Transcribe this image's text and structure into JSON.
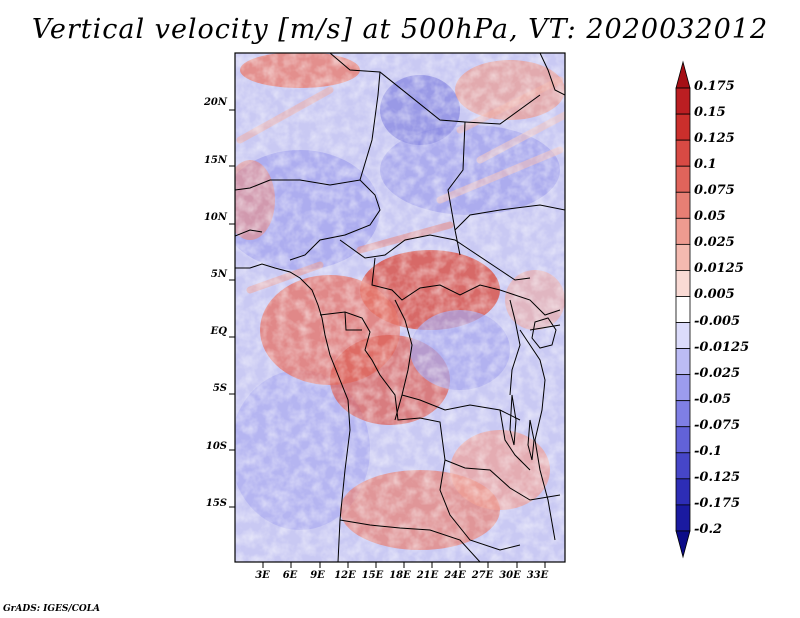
{
  "title": "Vertical velocity [m/s] at 500hPa, VT: 2020032012",
  "footer": "GrADS: IGES/COLA",
  "map": {
    "field": "vertical velocity",
    "units": "m/s",
    "level": "500hPa",
    "valid_time": "2020032012",
    "lon_range": [
      0,
      36
    ],
    "lat_range": [
      -20,
      24.5
    ],
    "lat_labels": [
      {
        "lat": 20,
        "text": "20N"
      },
      {
        "lat": 15,
        "text": "15N"
      },
      {
        "lat": 10,
        "text": "10N"
      },
      {
        "lat": 5,
        "text": "5N"
      },
      {
        "lat": 0,
        "text": "EQ"
      },
      {
        "lat": -5,
        "text": "5S"
      },
      {
        "lat": -10,
        "text": "10S"
      },
      {
        "lat": -15,
        "text": "15S"
      }
    ],
    "lon_labels": [
      {
        "lon": 3,
        "text": "3E"
      },
      {
        "lon": 6,
        "text": "6E"
      },
      {
        "lon": 9,
        "text": "9E"
      },
      {
        "lon": 12,
        "text": "12E"
      },
      {
        "lon": 15,
        "text": "15E"
      },
      {
        "lon": 18,
        "text": "18E"
      },
      {
        "lon": 21,
        "text": "21E"
      },
      {
        "lon": 24,
        "text": "24E"
      },
      {
        "lon": 27,
        "text": "27E"
      },
      {
        "lon": 30,
        "text": "30E"
      },
      {
        "lon": 33,
        "text": "33E"
      }
    ]
  },
  "colorbar": {
    "levels": [
      "0.175",
      "0.15",
      "0.125",
      "0.1",
      "0.075",
      "0.05",
      "0.025",
      "0.0125",
      "0.005",
      "-0.005",
      "-0.0125",
      "-0.025",
      "-0.05",
      "-0.075",
      "-0.1",
      "-0.125",
      "-0.175",
      "-0.2"
    ],
    "colors": [
      "#a50f15",
      "#bb1e22",
      "#cb2f2c",
      "#d84a44",
      "#e0645b",
      "#e77f74",
      "#ee9b90",
      "#f4bab0",
      "#f9dad4",
      "#ffffff",
      "#dcdcfb",
      "#bcbcf5",
      "#9c9cee",
      "#7f7fe5",
      "#6262d8",
      "#4646c8",
      "#2d2db6",
      "#1a1aa0",
      "#0c0c88"
    ]
  }
}
